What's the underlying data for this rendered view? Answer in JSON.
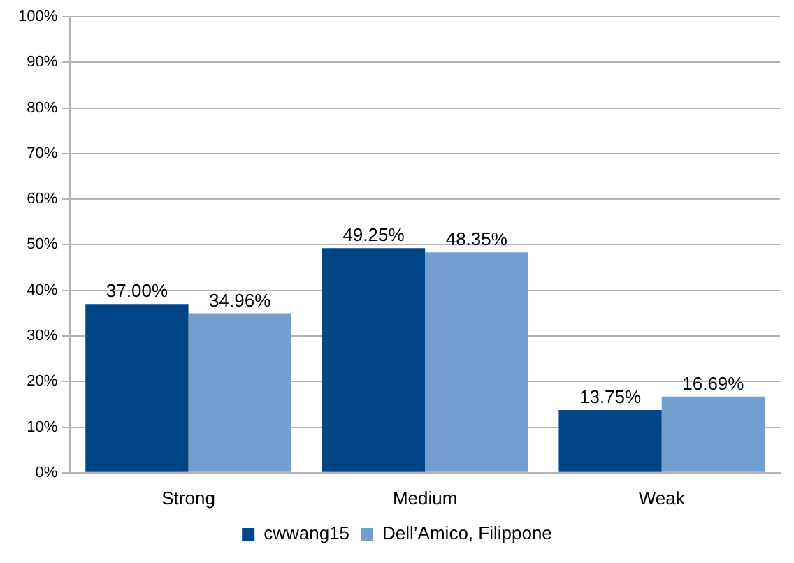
{
  "chart_data": {
    "type": "bar",
    "categories": [
      "Strong",
      "Medium",
      "Weak"
    ],
    "series": [
      {
        "name": "cwwang15",
        "color": "#004586",
        "values": [
          37.0,
          49.25,
          13.75
        ],
        "value_labels": [
          "37.00%",
          "49.25%",
          "13.75%"
        ]
      },
      {
        "name": "Dell’Amico, Filippone",
        "color": "#729fcf",
        "values": [
          34.96,
          48.35,
          16.69
        ],
        "value_labels": [
          "34.96%",
          "48.35%",
          "16.69%"
        ]
      }
    ],
    "ylim": [
      0,
      100
    ],
    "yticks": [
      {
        "value": 0,
        "label": "0%"
      },
      {
        "value": 10,
        "label": "10%"
      },
      {
        "value": 20,
        "label": "20%"
      },
      {
        "value": 30,
        "label": "30%"
      },
      {
        "value": 40,
        "label": "40%"
      },
      {
        "value": 50,
        "label": "50%"
      },
      {
        "value": 60,
        "label": "60%"
      },
      {
        "value": 70,
        "label": "70%"
      },
      {
        "value": 80,
        "label": "80%"
      },
      {
        "value": 90,
        "label": "90%"
      },
      {
        "value": 100,
        "label": "100%"
      }
    ],
    "grid": "y",
    "legend": "bottom"
  }
}
